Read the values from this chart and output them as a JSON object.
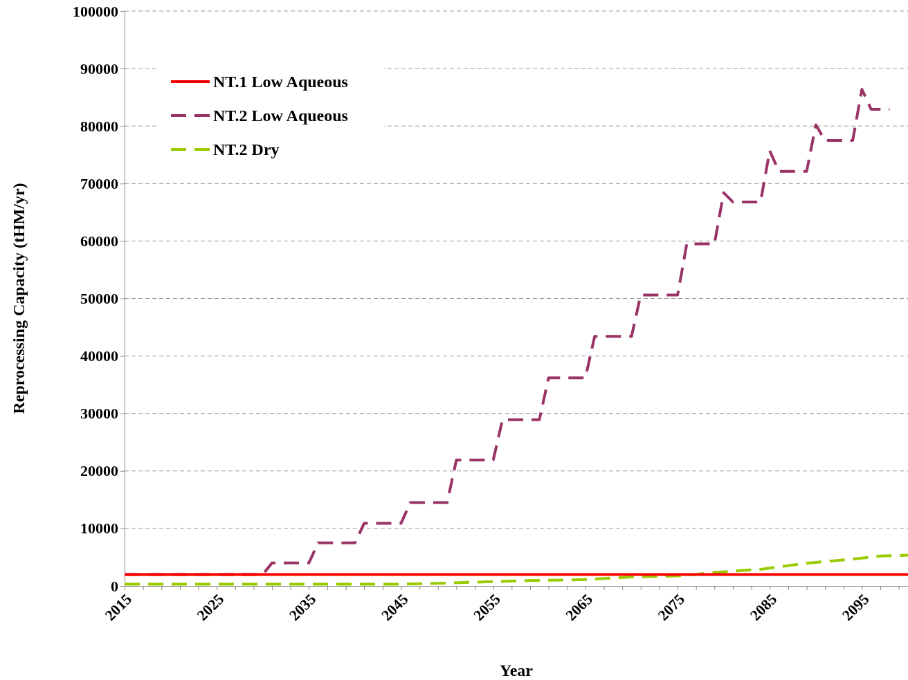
{
  "chart_data": {
    "type": "line",
    "xlabel": "Year",
    "ylabel": "Reprocessing Capacity (tHM/yr)",
    "xlim": [
      2015,
      2100
    ],
    "xticks": [
      2015,
      {
        "value": 2017,
        "label": null
      },
      {
        "value": 2019,
        "label": null
      },
      {
        "value": 2021,
        "label": null
      },
      {
        "value": 2023,
        "label": null
      },
      2025,
      {
        "value": 2027,
        "label": null
      },
      {
        "value": 2029,
        "label": null
      },
      {
        "value": 2031,
        "label": null
      },
      {
        "value": 2033,
        "label": null
      },
      2035,
      {
        "value": 2037,
        "label": null
      },
      {
        "value": 2039,
        "label": null
      },
      {
        "value": 2041,
        "label": null
      },
      {
        "value": 2043,
        "label": null
      },
      2045,
      {
        "value": 2047,
        "label": null
      },
      {
        "value": 2049,
        "label": null
      },
      {
        "value": 2051,
        "label": null
      },
      {
        "value": 2053,
        "label": null
      },
      2055,
      {
        "value": 2057,
        "label": null
      },
      {
        "value": 2059,
        "label": null
      },
      {
        "value": 2061,
        "label": null
      },
      {
        "value": 2063,
        "label": null
      },
      2065,
      {
        "value": 2067,
        "label": null
      },
      {
        "value": 2069,
        "label": null
      },
      {
        "value": 2071,
        "label": null
      },
      {
        "value": 2073,
        "label": null
      },
      2075,
      {
        "value": 2077,
        "label": null
      },
      {
        "value": 2079,
        "label": null
      },
      {
        "value": 2081,
        "label": null
      },
      {
        "value": 2083,
        "label": null
      },
      2085,
      {
        "value": 2087,
        "label": null
      },
      {
        "value": 2089,
        "label": null
      },
      {
        "value": 2091,
        "label": null
      },
      {
        "value": 2093,
        "label": null
      },
      2095,
      {
        "value": 2097,
        "label": null
      },
      {
        "value": 2099,
        "label": null
      }
    ],
    "ylim": [
      0,
      100000
    ],
    "yticks": [
      0,
      10000,
      20000,
      30000,
      40000,
      50000,
      60000,
      70000,
      80000,
      90000,
      100000
    ],
    "grid": "y",
    "legend": "top left",
    "marker": "none",
    "series": [
      {
        "name": "NT.1 Low Aqueous",
        "color": "#ff0000",
        "line_style": "solid",
        "x": [
          2015,
          2100
        ],
        "values": [
          2000,
          2000
        ]
      },
      {
        "name": "NT.2 Low Aqueous",
        "color": "#993366",
        "line_style": "dashed",
        "x": [
          2015,
          2030,
          2031,
          2035,
          2036,
          2040,
          2041,
          2045,
          2046,
          2050,
          2051,
          2055,
          2056,
          2060,
          2061,
          2065,
          2066,
          2070,
          2071,
          2075,
          2076,
          2079,
          2080,
          2081,
          2084,
          2085,
          2086,
          2089,
          2090,
          2091,
          2094,
          2095,
          2096,
          2098
        ],
        "values": [
          2000,
          2000,
          4000,
          4000,
          7500,
          7500,
          10900,
          10900,
          14500,
          14500,
          21900,
          21900,
          28900,
          28900,
          36200,
          36200,
          43400,
          43400,
          50600,
          50600,
          59500,
          59500,
          68400,
          66800,
          66800,
          75700,
          72100,
          72100,
          80200,
          77500,
          77500,
          86400,
          82900,
          82900
        ]
      },
      {
        "name": "NT.2 Dry",
        "color": "#99cc00",
        "line_style": "dashed",
        "x": [
          2015,
          2045,
          2050,
          2055,
          2058,
          2065,
          2070,
          2075,
          2077,
          2079,
          2084,
          2089,
          2094,
          2097,
          2100
        ],
        "values": [
          300,
          300,
          500,
          750,
          900,
          1100,
          1550,
          1750,
          2000,
          2350,
          2900,
          3950,
          4650,
          5200,
          5350
        ]
      }
    ]
  }
}
